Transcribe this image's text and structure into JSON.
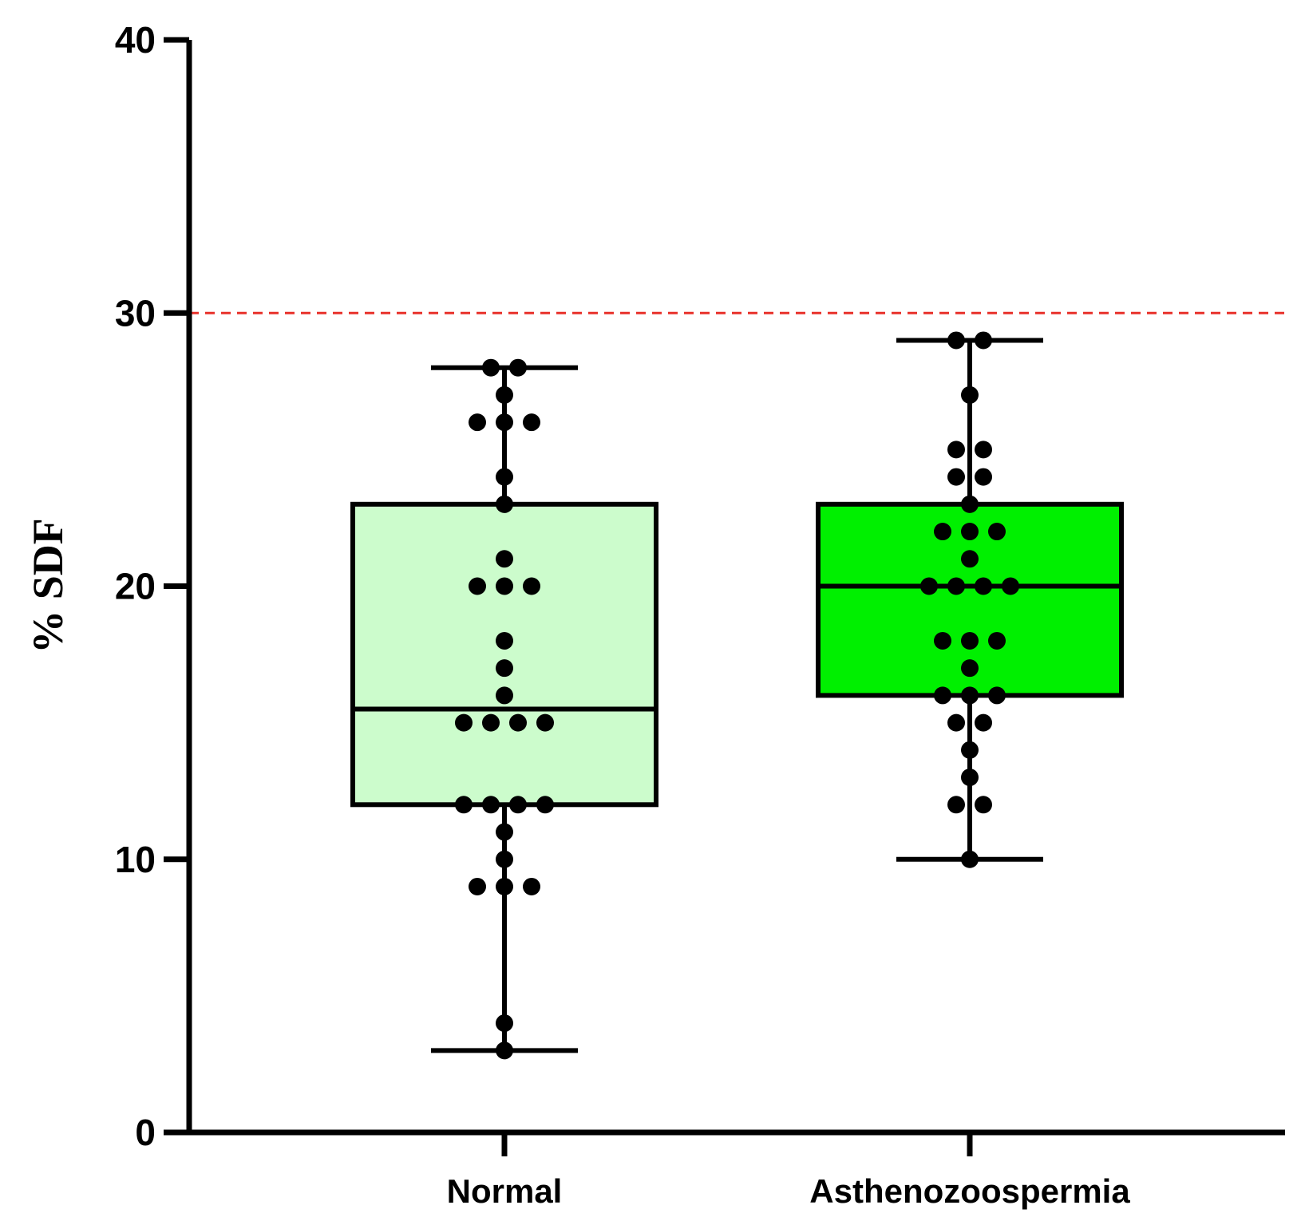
{
  "chart_data": {
    "type": "box",
    "title": "",
    "xlabel": "",
    "ylabel": "% SDF",
    "ylim": [
      0,
      40
    ],
    "yticks": [
      0,
      10,
      20,
      30,
      40
    ],
    "grid": false,
    "reference_line": {
      "value": 30,
      "color": "#e8302a",
      "style": "dashed"
    },
    "categories": [
      "Normal",
      "Asthenozoospermia"
    ],
    "series": [
      {
        "category": "Normal",
        "fill": "#ccfccc",
        "min": 3,
        "q1": 12,
        "median": 15.5,
        "q3": 23,
        "max": 28,
        "points": [
          {
            "v": 28,
            "n": 2
          },
          {
            "v": 27,
            "n": 1
          },
          {
            "v": 26,
            "n": 3
          },
          {
            "v": 24,
            "n": 1
          },
          {
            "v": 23,
            "n": 1
          },
          {
            "v": 21,
            "n": 1
          },
          {
            "v": 20,
            "n": 3
          },
          {
            "v": 18,
            "n": 1
          },
          {
            "v": 17,
            "n": 1
          },
          {
            "v": 16,
            "n": 1
          },
          {
            "v": 15,
            "n": 4
          },
          {
            "v": 12,
            "n": 4
          },
          {
            "v": 11,
            "n": 1
          },
          {
            "v": 10,
            "n": 1
          },
          {
            "v": 9,
            "n": 3
          },
          {
            "v": 4,
            "n": 1
          },
          {
            "v": 3,
            "n": 1
          }
        ]
      },
      {
        "category": "Asthenozoospermia",
        "fill": "#00f000",
        "min": 10,
        "q1": 16,
        "median": 20,
        "q3": 23,
        "max": 29,
        "points": [
          {
            "v": 29,
            "n": 2
          },
          {
            "v": 27,
            "n": 1
          },
          {
            "v": 25,
            "n": 2
          },
          {
            "v": 24,
            "n": 2
          },
          {
            "v": 23,
            "n": 1
          },
          {
            "v": 22,
            "n": 3
          },
          {
            "v": 21,
            "n": 1
          },
          {
            "v": 20,
            "n": 4
          },
          {
            "v": 18,
            "n": 3
          },
          {
            "v": 17,
            "n": 1
          },
          {
            "v": 16,
            "n": 3
          },
          {
            "v": 15,
            "n": 2
          },
          {
            "v": 14,
            "n": 1
          },
          {
            "v": 13,
            "n": 1
          },
          {
            "v": 12,
            "n": 2
          },
          {
            "v": 10,
            "n": 1
          }
        ]
      }
    ]
  }
}
